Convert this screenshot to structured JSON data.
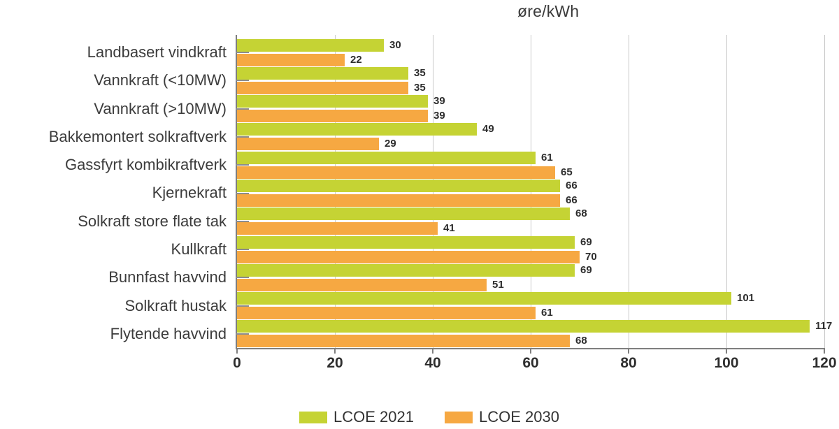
{
  "chart_data": {
    "type": "bar",
    "orientation": "horizontal",
    "title": "øre/kWh",
    "unit": "øre/kWh",
    "categories": [
      "Landbasert vindkraft",
      "Vannkraft (<10MW)",
      "Vannkraft (>10MW)",
      "Bakkemontert solkraftverk",
      "Gassfyrt kombikraftverk",
      "Kjernekraft",
      "Solkraft store flate tak",
      "Kullkraft",
      "Bunnfast havvind",
      "Solkraft hustak",
      "Flytende havvind"
    ],
    "series": [
      {
        "name": "LCOE 2021",
        "color": "#c5d334",
        "values": [
          30,
          35,
          39,
          49,
          61,
          66,
          68,
          69,
          69,
          101,
          117
        ]
      },
      {
        "name": "LCOE 2030",
        "color": "#f6a842",
        "values": [
          22,
          35,
          39,
          29,
          65,
          66,
          41,
          70,
          51,
          61,
          68
        ]
      }
    ],
    "xlim": [
      0,
      120
    ],
    "xticks": [
      0,
      20,
      40,
      60,
      80,
      100,
      120
    ],
    "grid": true,
    "value_labels": true,
    "legend_position": "bottom",
    "colors": {
      "axis": "#7f7f7f",
      "gridline": "#c9c9c9",
      "text": "#3c3c3c"
    }
  }
}
